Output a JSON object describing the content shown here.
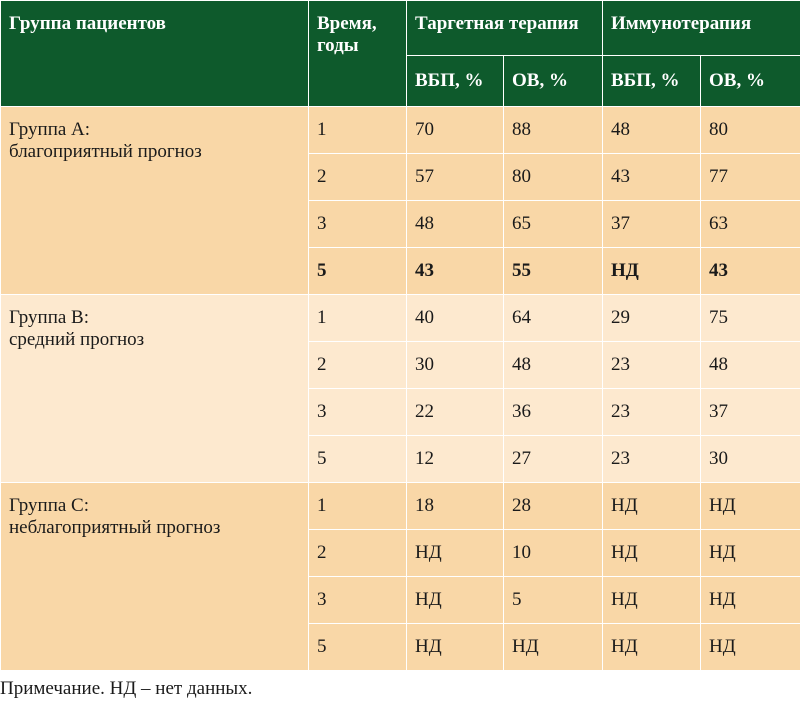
{
  "table": {
    "header": {
      "group": "Группа пациентов",
      "time": [
        "Время,",
        "годы"
      ],
      "therapies": [
        {
          "name": "Таргетная терапия",
          "metrics": [
            "ВБП, %",
            "ОВ, %"
          ]
        },
        {
          "name": "Иммунотерапия",
          "metrics": [
            "ВБП, %",
            "ОВ, %"
          ]
        }
      ]
    },
    "groups": [
      {
        "label": [
          "Группа А:",
          "благоприятный прогноз"
        ],
        "rows": [
          {
            "time": 1,
            "values": [
              70,
              88,
              48,
              80
            ]
          },
          {
            "time": 2,
            "values": [
              57,
              80,
              43,
              77
            ]
          },
          {
            "time": 3,
            "values": [
              48,
              65,
              37,
              63
            ]
          },
          {
            "time": 5,
            "values": [
              43,
              55,
              "НД",
              43
            ],
            "bold": true
          }
        ]
      },
      {
        "label": [
          "Группа В:",
          "средний прогноз"
        ],
        "rows": [
          {
            "time": 1,
            "values": [
              40,
              64,
              29,
              75
            ]
          },
          {
            "time": 2,
            "values": [
              30,
              48,
              23,
              48
            ]
          },
          {
            "time": 3,
            "values": [
              22,
              36,
              23,
              37
            ]
          },
          {
            "time": 5,
            "values": [
              12,
              27,
              23,
              30
            ]
          }
        ]
      },
      {
        "label": [
          "Группа С:",
          "неблагоприятный прогноз"
        ],
        "rows": [
          {
            "time": 1,
            "values": [
              18,
              28,
              "НД",
              "НД"
            ]
          },
          {
            "time": 2,
            "values": [
              "НД",
              10,
              "НД",
              "НД"
            ]
          },
          {
            "time": 3,
            "values": [
              "НД",
              5,
              "НД",
              "НД"
            ]
          },
          {
            "time": 5,
            "values": [
              "НД",
              "НД",
              "НД",
              "НД"
            ]
          }
        ]
      }
    ]
  },
  "note": "Примечание. НД – нет данных."
}
